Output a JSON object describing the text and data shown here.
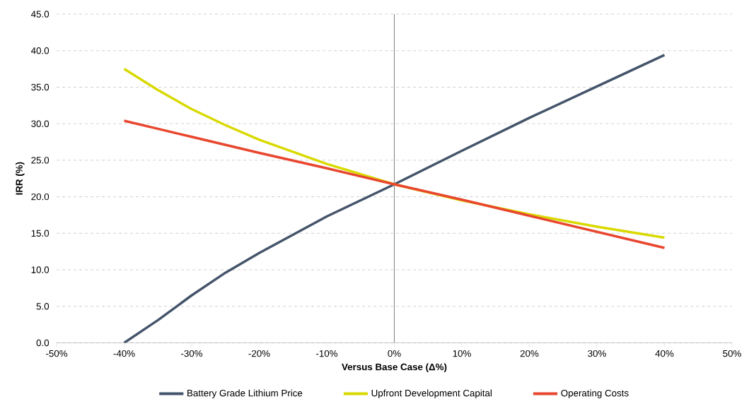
{
  "chart_data": {
    "type": "line",
    "xlabel": "Versus Base Case (Δ%)",
    "ylabel": "IRR (%)",
    "x": [
      -40,
      -35,
      -30,
      -25,
      -20,
      -10,
      0,
      10,
      20,
      30,
      40
    ],
    "series": [
      {
        "name": "Battery Grade Lithium Price",
        "color": "#44546a",
        "values": [
          0.0,
          3.1,
          6.5,
          9.6,
          12.3,
          17.3,
          21.7,
          26.3,
          30.8,
          35.1,
          39.4
        ]
      },
      {
        "name": "Upfront Development Capital",
        "color": "#d9d900",
        "values": [
          37.5,
          34.6,
          32.0,
          29.8,
          27.8,
          24.5,
          21.7,
          19.5,
          17.6,
          15.9,
          14.4
        ]
      },
      {
        "name": "Operating  Costs",
        "color": "#e8462e",
        "values": [
          30.4,
          29.3,
          28.2,
          27.1,
          26.0,
          23.9,
          21.7,
          19.6,
          17.4,
          15.2,
          13.0
        ]
      }
    ],
    "xlim": [
      -50,
      50
    ],
    "ylim": [
      0,
      45
    ],
    "xticks": [
      {
        "value": -50,
        "label": "-50%"
      },
      {
        "value": -40,
        "label": "-40%"
      },
      {
        "value": -30,
        "label": "-30%"
      },
      {
        "value": -20,
        "label": "-20%"
      },
      {
        "value": -10,
        "label": "-10%"
      },
      {
        "value": 0,
        "label": "0%"
      },
      {
        "value": 10,
        "label": "10%"
      },
      {
        "value": 20,
        "label": "20%"
      },
      {
        "value": 30,
        "label": "30%"
      },
      {
        "value": 40,
        "label": "40%"
      },
      {
        "value": 50,
        "label": "50%"
      }
    ],
    "yticks": [
      {
        "value": 0,
        "label": "0.0"
      },
      {
        "value": 5,
        "label": "5.0"
      },
      {
        "value": 10,
        "label": "10.0"
      },
      {
        "value": 15,
        "label": "15.0"
      },
      {
        "value": 20,
        "label": "20.0"
      },
      {
        "value": 25,
        "label": "25.0"
      },
      {
        "value": 30,
        "label": "30.0"
      },
      {
        "value": 35,
        "label": "35.0"
      },
      {
        "value": 40,
        "label": "40.0"
      },
      {
        "value": 45,
        "label": "45.0"
      }
    ],
    "ref_lines": [
      {
        "axis": "x",
        "value": 0,
        "color": "#808080"
      }
    ],
    "grid": "y",
    "legend": "bottom",
    "marker": "none",
    "line_style": "solid"
  }
}
